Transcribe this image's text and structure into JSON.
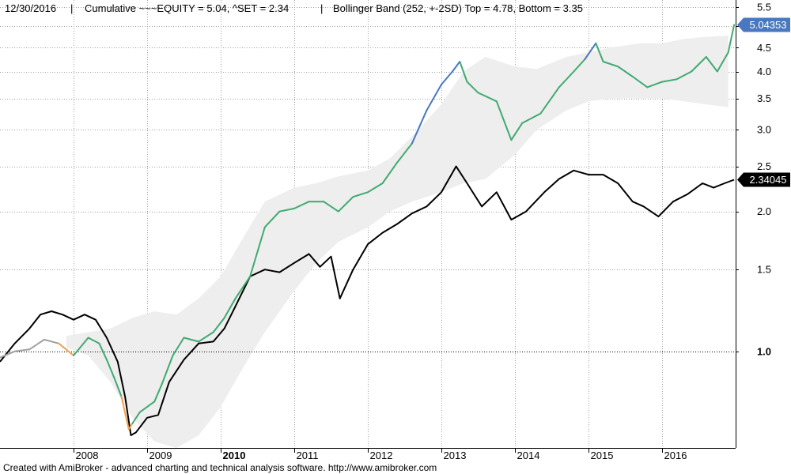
{
  "header": {
    "date": "12/30/2016",
    "sep": "|",
    "equity_text": "Cumulative ~~~EQUITY = 5.04, ^SET = 2.34",
    "bollinger_text": "Bollinger Band (252, +-2SD)   Top = 4.78, Bottom = 3.35"
  },
  "footer": "Created with AmiBroker - advanced charting and technical analysis software. http://www.amibroker.com",
  "colors": {
    "background": "#ffffff",
    "band_fill": "#eeeeee",
    "grid": "#a0a0a0",
    "benchmark": "#000000",
    "equity_below_band": "#f0a050",
    "equity_in_band": "#40aa70",
    "equity_above_band": "#4a78c0",
    "equity_pre_band": "#a0a0a0",
    "equity_badge_bg": "#4a78c0",
    "benchmark_badge_bg": "#000000"
  },
  "chart_data": {
    "type": "line",
    "y_scale": "log",
    "ylim": [
      0.62,
      5.7
    ],
    "y_ticks": [
      1.0,
      1.5,
      2.0,
      2.5,
      3.0,
      3.5,
      4.0,
      4.5,
      5.0,
      5.5
    ],
    "y_tick_labels": [
      "1.0",
      "1.5",
      "2.0",
      "2.5",
      "3.0",
      "3.5",
      "4.0",
      "4.5",
      "5.0",
      "5.5"
    ],
    "xlim": [
      2007.0,
      2017.0
    ],
    "x_ticks": [
      2008,
      2009,
      2010,
      2011,
      2012,
      2013,
      2014,
      2015,
      2016
    ],
    "x_tick_labels": [
      "2008",
      "2009",
      "2010",
      "2011",
      "2012",
      "2013",
      "2014",
      "2015",
      "2016"
    ],
    "bold_x_tick": "2010",
    "reference_line": 1.0,
    "series": [
      {
        "name": "EQUITY",
        "last_value_label": "5.04353",
        "points": [
          [
            2007.0,
            0.97
          ],
          [
            2007.2,
            1.0
          ],
          [
            2007.4,
            1.01
          ],
          [
            2007.6,
            1.06
          ],
          [
            2007.8,
            1.04
          ],
          [
            2008.0,
            0.98
          ],
          [
            2008.2,
            1.07
          ],
          [
            2008.35,
            1.04
          ],
          [
            2008.45,
            0.96
          ],
          [
            2008.55,
            0.88
          ],
          [
            2008.65,
            0.8
          ],
          [
            2008.75,
            0.68
          ],
          [
            2008.8,
            0.7
          ],
          [
            2008.9,
            0.74
          ],
          [
            2009.1,
            0.78
          ],
          [
            2009.2,
            0.85
          ],
          [
            2009.35,
            0.98
          ],
          [
            2009.5,
            1.07
          ],
          [
            2009.7,
            1.05
          ],
          [
            2009.9,
            1.1
          ],
          [
            2010.05,
            1.18
          ],
          [
            2010.2,
            1.3
          ],
          [
            2010.4,
            1.45
          ],
          [
            2010.6,
            1.85
          ],
          [
            2010.8,
            2.0
          ],
          [
            2011.0,
            2.03
          ],
          [
            2011.2,
            2.1
          ],
          [
            2011.4,
            2.1
          ],
          [
            2011.6,
            2.0
          ],
          [
            2011.8,
            2.15
          ],
          [
            2012.0,
            2.2
          ],
          [
            2012.2,
            2.3
          ],
          [
            2012.4,
            2.55
          ],
          [
            2012.6,
            2.8
          ],
          [
            2012.8,
            3.3
          ],
          [
            2013.0,
            3.75
          ],
          [
            2013.15,
            4.0
          ],
          [
            2013.25,
            4.2
          ],
          [
            2013.35,
            3.8
          ],
          [
            2013.5,
            3.6
          ],
          [
            2013.75,
            3.45
          ],
          [
            2013.95,
            2.85
          ],
          [
            2014.1,
            3.1
          ],
          [
            2014.35,
            3.25
          ],
          [
            2014.6,
            3.7
          ],
          [
            2014.8,
            4.0
          ],
          [
            2014.95,
            4.25
          ],
          [
            2015.1,
            4.6
          ],
          [
            2015.2,
            4.2
          ],
          [
            2015.4,
            4.1
          ],
          [
            2015.6,
            3.9
          ],
          [
            2015.8,
            3.7
          ],
          [
            2016.0,
            3.8
          ],
          [
            2016.2,
            3.85
          ],
          [
            2016.4,
            4.0
          ],
          [
            2016.6,
            4.3
          ],
          [
            2016.75,
            4.0
          ],
          [
            2016.9,
            4.4
          ],
          [
            2016.98,
            5.04
          ]
        ]
      },
      {
        "name": "^SET",
        "last_value_label": "2.34045",
        "points": [
          [
            2007.0,
            0.95
          ],
          [
            2007.2,
            1.04
          ],
          [
            2007.4,
            1.12
          ],
          [
            2007.55,
            1.2
          ],
          [
            2007.7,
            1.22
          ],
          [
            2007.85,
            1.2
          ],
          [
            2008.0,
            1.17
          ],
          [
            2008.15,
            1.2
          ],
          [
            2008.3,
            1.17
          ],
          [
            2008.45,
            1.07
          ],
          [
            2008.6,
            0.95
          ],
          [
            2008.7,
            0.8
          ],
          [
            2008.78,
            0.66
          ],
          [
            2008.85,
            0.67
          ],
          [
            2009.0,
            0.72
          ],
          [
            2009.15,
            0.73
          ],
          [
            2009.3,
            0.86
          ],
          [
            2009.5,
            0.96
          ],
          [
            2009.7,
            1.04
          ],
          [
            2009.9,
            1.05
          ],
          [
            2010.05,
            1.12
          ],
          [
            2010.2,
            1.25
          ],
          [
            2010.4,
            1.45
          ],
          [
            2010.6,
            1.5
          ],
          [
            2010.8,
            1.48
          ],
          [
            2011.0,
            1.55
          ],
          [
            2011.2,
            1.62
          ],
          [
            2011.35,
            1.52
          ],
          [
            2011.5,
            1.6
          ],
          [
            2011.62,
            1.3
          ],
          [
            2011.8,
            1.5
          ],
          [
            2012.0,
            1.7
          ],
          [
            2012.2,
            1.8
          ],
          [
            2012.4,
            1.88
          ],
          [
            2012.6,
            1.98
          ],
          [
            2012.8,
            2.05
          ],
          [
            2013.0,
            2.2
          ],
          [
            2013.2,
            2.5
          ],
          [
            2013.35,
            2.3
          ],
          [
            2013.55,
            2.05
          ],
          [
            2013.75,
            2.2
          ],
          [
            2013.95,
            1.92
          ],
          [
            2014.15,
            2.0
          ],
          [
            2014.4,
            2.2
          ],
          [
            2014.6,
            2.35
          ],
          [
            2014.8,
            2.45
          ],
          [
            2015.0,
            2.4
          ],
          [
            2015.2,
            2.4
          ],
          [
            2015.4,
            2.3
          ],
          [
            2015.6,
            2.1
          ],
          [
            2015.75,
            2.05
          ],
          [
            2015.95,
            1.95
          ],
          [
            2016.15,
            2.1
          ],
          [
            2016.35,
            2.18
          ],
          [
            2016.55,
            2.3
          ],
          [
            2016.7,
            2.25
          ],
          [
            2016.85,
            2.3
          ],
          [
            2016.98,
            2.34
          ]
        ]
      }
    ],
    "band": {
      "upper": [
        [
          2007.9,
          1.08
        ],
        [
          2008.2,
          1.1
        ],
        [
          2008.5,
          1.12
        ],
        [
          2008.8,
          1.18
        ],
        [
          2009.1,
          1.22
        ],
        [
          2009.4,
          1.2
        ],
        [
          2009.7,
          1.3
        ],
        [
          2010.0,
          1.45
        ],
        [
          2010.3,
          1.75
        ],
        [
          2010.6,
          2.1
        ],
        [
          2011.0,
          2.25
        ],
        [
          2011.3,
          2.3
        ],
        [
          2011.6,
          2.38
        ],
        [
          2012.0,
          2.45
        ],
        [
          2012.3,
          2.6
        ],
        [
          2012.6,
          2.9
        ],
        [
          2013.0,
          3.4
        ],
        [
          2013.3,
          4.0
        ],
        [
          2013.6,
          4.3
        ],
        [
          2014.0,
          4.1
        ],
        [
          2014.3,
          4.05
        ],
        [
          2014.7,
          4.3
        ],
        [
          2015.0,
          4.4
        ],
        [
          2015.3,
          4.5
        ],
        [
          2015.7,
          4.6
        ],
        [
          2016.0,
          4.6
        ],
        [
          2016.3,
          4.7
        ],
        [
          2016.6,
          4.75
        ],
        [
          2016.9,
          4.78
        ]
      ],
      "lower": [
        [
          2007.9,
          1.02
        ],
        [
          2008.2,
          0.98
        ],
        [
          2008.5,
          0.86
        ],
        [
          2008.8,
          0.72
        ],
        [
          2009.1,
          0.64
        ],
        [
          2009.4,
          0.62
        ],
        [
          2009.7,
          0.66
        ],
        [
          2010.0,
          0.76
        ],
        [
          2010.3,
          0.92
        ],
        [
          2010.6,
          1.1
        ],
        [
          2011.0,
          1.35
        ],
        [
          2011.3,
          1.55
        ],
        [
          2011.6,
          1.72
        ],
        [
          2012.0,
          1.85
        ],
        [
          2012.3,
          2.0
        ],
        [
          2012.6,
          2.1
        ],
        [
          2013.0,
          2.2
        ],
        [
          2013.3,
          2.3
        ],
        [
          2013.6,
          2.35
        ],
        [
          2014.0,
          2.65
        ],
        [
          2014.3,
          3.0
        ],
        [
          2014.7,
          3.3
        ],
        [
          2015.0,
          3.45
        ],
        [
          2015.3,
          3.5
        ],
        [
          2015.7,
          3.5
        ],
        [
          2016.0,
          3.5
        ],
        [
          2016.3,
          3.45
        ],
        [
          2016.6,
          3.4
        ],
        [
          2016.9,
          3.35
        ]
      ]
    }
  }
}
